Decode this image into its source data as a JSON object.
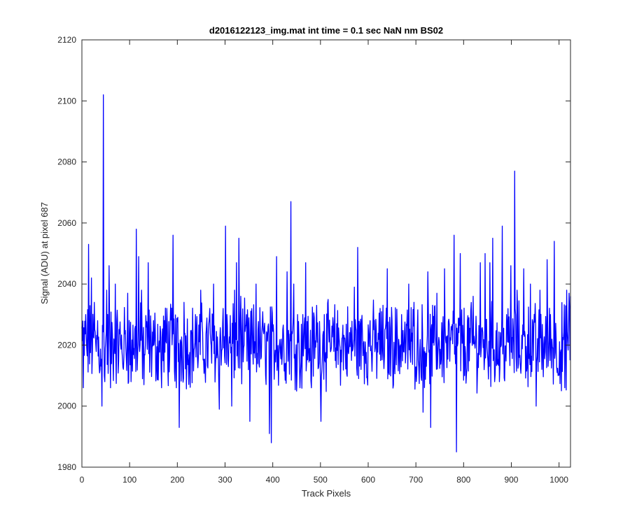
{
  "chart_data": {
    "type": "line",
    "title": "d2016122123_img.mat int time = 0.1 sec  NaN nm BS02",
    "xlabel": "Track Pixels",
    "ylabel": "Signal (ADU) at pixel 687",
    "xlim": [
      0,
      1024
    ],
    "ylim": [
      1980,
      2120
    ],
    "xticks": [
      0,
      100,
      200,
      300,
      400,
      500,
      600,
      700,
      800,
      900,
      1000
    ],
    "yticks": [
      1980,
      2000,
      2020,
      2040,
      2060,
      2080,
      2100,
      2120
    ],
    "grid": false,
    "series": [
      {
        "color": "#0000ff",
        "note": "noise trace of 1024 samples, baseline about 2020 ADU, typical range 2005-2040; 'points' lists the visually distinct peaks and dips",
        "points": [
          [
            0,
            2026
          ],
          [
            3,
            2006
          ],
          [
            8,
            2030
          ],
          [
            14,
            2053
          ],
          [
            20,
            2042
          ],
          [
            26,
            2034
          ],
          [
            33,
            2028
          ],
          [
            38,
            2012
          ],
          [
            42,
            2000
          ],
          [
            45,
            2102
          ],
          [
            48,
            2008
          ],
          [
            52,
            2038
          ],
          [
            57,
            2046
          ],
          [
            60,
            2006
          ],
          [
            70,
            2040
          ],
          [
            88,
            2016
          ],
          [
            96,
            2037
          ],
          [
            103,
            2008
          ],
          [
            114,
            2058
          ],
          [
            119,
            2049
          ],
          [
            125,
            2038
          ],
          [
            130,
            2007
          ],
          [
            139,
            2047
          ],
          [
            151,
            2020
          ],
          [
            167,
            2006
          ],
          [
            178,
            2032
          ],
          [
            191,
            2056
          ],
          [
            198,
            2006
          ],
          [
            204,
            1993
          ],
          [
            214,
            2034
          ],
          [
            238,
            2030
          ],
          [
            249,
            2038
          ],
          [
            258,
            2012
          ],
          [
            268,
            2032
          ],
          [
            276,
            2040
          ],
          [
            288,
            1999
          ],
          [
            296,
            2032
          ],
          [
            301,
            2059
          ],
          [
            308,
            2020
          ],
          [
            314,
            2000
          ],
          [
            320,
            2038
          ],
          [
            324,
            2047
          ],
          [
            329,
            2055
          ],
          [
            333,
            2036
          ],
          [
            340,
            2020
          ],
          [
            352,
            1995
          ],
          [
            357,
            2026
          ],
          [
            365,
            2040
          ],
          [
            371,
            2014
          ],
          [
            380,
            2025
          ],
          [
            384,
            2021
          ],
          [
            393,
            1991
          ],
          [
            397,
            1988
          ],
          [
            408,
            2049
          ],
          [
            414,
            2020
          ],
          [
            430,
            2044
          ],
          [
            438,
            2067
          ],
          [
            444,
            2040
          ],
          [
            452,
            2030
          ],
          [
            457,
            2006
          ],
          [
            463,
            2030
          ],
          [
            469,
            2047
          ],
          [
            481,
            2006
          ],
          [
            492,
            2033
          ],
          [
            501,
            1995
          ],
          [
            508,
            2030
          ],
          [
            518,
            2021
          ],
          [
            534,
            2027
          ],
          [
            558,
            2018
          ],
          [
            571,
            2039
          ],
          [
            578,
            2052
          ],
          [
            586,
            2027
          ],
          [
            604,
            2028
          ],
          [
            612,
            2025
          ],
          [
            625,
            2032
          ],
          [
            640,
            2045
          ],
          [
            650,
            2028
          ],
          [
            662,
            2020
          ],
          [
            670,
            2030
          ],
          [
            685,
            2040
          ],
          [
            696,
            2034
          ],
          [
            705,
            2015
          ],
          [
            715,
            1998
          ],
          [
            725,
            2044
          ],
          [
            731,
            1993
          ],
          [
            744,
            2037
          ],
          [
            760,
            2045
          ],
          [
            775,
            2025
          ],
          [
            780,
            2056
          ],
          [
            785,
            1985
          ],
          [
            793,
            2050
          ],
          [
            802,
            2010
          ],
          [
            820,
            2036
          ],
          [
            835,
            2047
          ],
          [
            845,
            2050
          ],
          [
            855,
            2047
          ],
          [
            861,
            2055
          ],
          [
            875,
            2008
          ],
          [
            881,
            2059
          ],
          [
            890,
            2030
          ],
          [
            899,
            2046
          ],
          [
            907,
            2077
          ],
          [
            912,
            2038
          ],
          [
            926,
            2045
          ],
          [
            940,
            2040
          ],
          [
            952,
            2000
          ],
          [
            960,
            2038
          ],
          [
            975,
            2048
          ],
          [
            982,
            2030
          ],
          [
            990,
            2054
          ],
          [
            998,
            2010
          ],
          [
            1005,
            2005
          ],
          [
            1012,
            2006
          ],
          [
            1016,
            2038
          ],
          [
            1021,
            2037
          ],
          [
            1024,
            2036
          ]
        ]
      }
    ]
  }
}
